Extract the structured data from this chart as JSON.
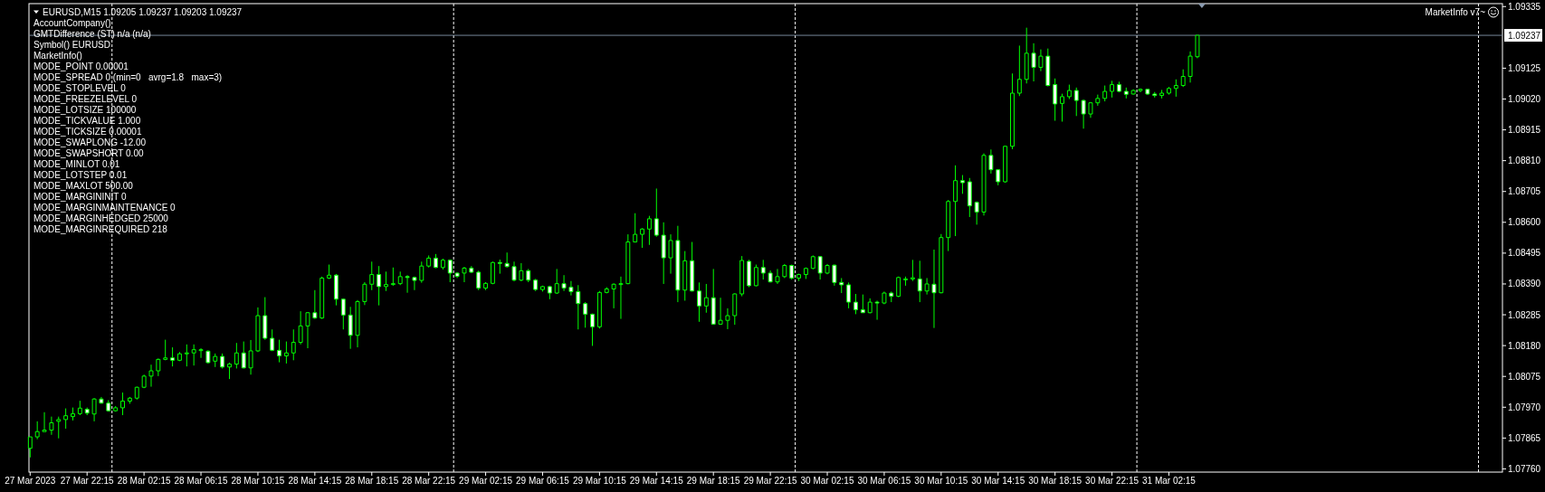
{
  "chart_data": {
    "type": "candlestick",
    "title": "EURUSD,M15 1.09205 1.09237 1.09203 1.09237",
    "subtitle": "MarketInfo v7~",
    "annotations": [
      "AccountCompany()",
      "GMTDifference (ST) n/a (n/a)",
      "Symbol() EURUSD",
      "MarketInfo()",
      "MODE_POINT 0.00001",
      "MODE_SPREAD 0 (min=0   avrg=1.8   max=3)",
      "MODE_STOPLEVEL 0",
      "MODE_FREEZELEVEL 0",
      "MODE_LOTSIZE 100000",
      "MODE_TICKVALUE 1.000",
      "MODE_TICKSIZE 0.00001",
      "MODE_SWAPLONG -12.00",
      "MODE_SWAPSHORT 0.00",
      "MODE_MINLOT 0.01",
      "MODE_LOTSTEP 0.01",
      "MODE_MAXLOT 500.00",
      "MODE_MARGININIT 0",
      "MODE_MARGINMAINTENANCE 0",
      "MODE_MARGINHEDGED 25000",
      "MODE_MARGINREQUIRED 218"
    ],
    "color": "#00ff00",
    "x": [
      "2023-03-27T18:15",
      "2023-03-27T18:45",
      "2023-03-27T19:15",
      "2023-03-27T19:45",
      "2023-03-27T20:15",
      "2023-03-27T20:45",
      "2023-03-27T21:15",
      "2023-03-27T21:45",
      "2023-03-27T22:15",
      "2023-03-27T22:45",
      "2023-03-27T23:15",
      "2023-03-27T23:45",
      "2023-03-28T00:15",
      "2023-03-28T00:45",
      "2023-03-28T01:15",
      "2023-03-28T01:45",
      "2023-03-28T02:15",
      "2023-03-28T02:45",
      "2023-03-28T03:15",
      "2023-03-28T03:45",
      "2023-03-28T04:15",
      "2023-03-28T04:45",
      "2023-03-28T05:15",
      "2023-03-28T05:45",
      "2023-03-28T06:15",
      "2023-03-28T06:45",
      "2023-03-28T07:15",
      "2023-03-28T07:45",
      "2023-03-28T08:15",
      "2023-03-28T08:45",
      "2023-03-28T09:15",
      "2023-03-28T09:45",
      "2023-03-28T10:15",
      "2023-03-28T10:45",
      "2023-03-28T11:15",
      "2023-03-28T11:45",
      "2023-03-28T12:15",
      "2023-03-28T12:45",
      "2023-03-28T13:15",
      "2023-03-28T13:45",
      "2023-03-28T14:15",
      "2023-03-28T14:45",
      "2023-03-28T15:15",
      "2023-03-28T15:45",
      "2023-03-28T16:15",
      "2023-03-28T16:45",
      "2023-03-28T17:15",
      "2023-03-28T17:45",
      "2023-03-28T18:15",
      "2023-03-28T18:45",
      "2023-03-28T19:15",
      "2023-03-28T19:45",
      "2023-03-28T20:15",
      "2023-03-28T20:45",
      "2023-03-28T21:15",
      "2023-03-28T21:45",
      "2023-03-28T22:15",
      "2023-03-28T22:45",
      "2023-03-28T23:15",
      "2023-03-28T23:45",
      "2023-03-29T00:15",
      "2023-03-29T00:45",
      "2023-03-29T01:15",
      "2023-03-29T01:45",
      "2023-03-29T02:15",
      "2023-03-29T02:45",
      "2023-03-29T03:15",
      "2023-03-29T03:45",
      "2023-03-29T04:15",
      "2023-03-29T04:45",
      "2023-03-29T05:15",
      "2023-03-29T05:45",
      "2023-03-29T06:15",
      "2023-03-29T06:45",
      "2023-03-29T07:15",
      "2023-03-29T07:45",
      "2023-03-29T08:15",
      "2023-03-29T08:45",
      "2023-03-29T09:15",
      "2023-03-29T09:45",
      "2023-03-29T10:15",
      "2023-03-29T10:45",
      "2023-03-29T11:15",
      "2023-03-29T11:45",
      "2023-03-29T12:15",
      "2023-03-29T12:45",
      "2023-03-29T13:15",
      "2023-03-29T13:45",
      "2023-03-29T14:15",
      "2023-03-29T14:45",
      "2023-03-29T15:15",
      "2023-03-29T15:45",
      "2023-03-29T16:15",
      "2023-03-29T16:45",
      "2023-03-29T17:15",
      "2023-03-29T17:45",
      "2023-03-29T18:15",
      "2023-03-29T18:45",
      "2023-03-29T19:15",
      "2023-03-29T19:45",
      "2023-03-29T20:15",
      "2023-03-29T20:45",
      "2023-03-29T21:15",
      "2023-03-29T21:45",
      "2023-03-29T22:15",
      "2023-03-29T22:45",
      "2023-03-29T23:15",
      "2023-03-29T23:45",
      "2023-03-30T00:15",
      "2023-03-30T00:45",
      "2023-03-30T01:15",
      "2023-03-30T01:45",
      "2023-03-30T02:15",
      "2023-03-30T02:45",
      "2023-03-30T03:15",
      "2023-03-30T03:45",
      "2023-03-30T04:15",
      "2023-03-30T04:45",
      "2023-03-30T05:15",
      "2023-03-30T05:45",
      "2023-03-30T06:15",
      "2023-03-30T06:45",
      "2023-03-30T07:15",
      "2023-03-30T07:45",
      "2023-03-30T08:15",
      "2023-03-30T08:45",
      "2023-03-30T09:15",
      "2023-03-30T09:45",
      "2023-03-30T10:15",
      "2023-03-30T10:45",
      "2023-03-30T11:15",
      "2023-03-30T11:45",
      "2023-03-30T12:15",
      "2023-03-30T12:45",
      "2023-03-30T13:15",
      "2023-03-30T13:45",
      "2023-03-30T14:15",
      "2023-03-30T14:45",
      "2023-03-30T15:15",
      "2023-03-30T15:45",
      "2023-03-30T16:15",
      "2023-03-30T16:45",
      "2023-03-30T17:15",
      "2023-03-30T17:45",
      "2023-03-30T18:15",
      "2023-03-30T18:45",
      "2023-03-30T19:15",
      "2023-03-30T19:45",
      "2023-03-30T20:15",
      "2023-03-30T20:45",
      "2023-03-30T21:15",
      "2023-03-30T21:45",
      "2023-03-30T22:15",
      "2023-03-30T22:45",
      "2023-03-30T23:15",
      "2023-03-30T23:45",
      "2023-03-31T00:15",
      "2023-03-31T00:45",
      "2023-03-31T01:15",
      "2023-03-31T01:45",
      "2023-03-31T02:15",
      "2023-03-31T02:45",
      "2023-03-31T03:15",
      "2023-03-31T03:45",
      "2023-03-31T04:15"
    ],
    "ohlc": [
      [
        1.0783,
        1.07869,
        1.07799,
        1.07869
      ],
      [
        1.07869,
        1.07922,
        1.07861,
        1.07887
      ],
      [
        1.07887,
        1.07953,
        1.07887,
        1.07892
      ],
      [
        1.07892,
        1.07938,
        1.07876,
        1.07917
      ],
      [
        1.07922,
        1.07938,
        1.07864,
        1.07928
      ],
      [
        1.07928,
        1.07966,
        1.07897,
        1.07941
      ],
      [
        1.07938,
        1.07969,
        1.07925,
        1.07948
      ],
      [
        1.07948,
        1.07992,
        1.07943,
        1.07967
      ],
      [
        1.07963,
        1.07969,
        1.07943,
        1.0795
      ],
      [
        1.07947,
        1.08001,
        1.07922,
        1.07998
      ],
      [
        1.07998,
        1.08005,
        1.07982,
        1.07984
      ],
      [
        1.07984,
        1.07994,
        1.07955,
        1.07958
      ],
      [
        1.07958,
        1.07974,
        1.07955,
        1.07968
      ],
      [
        1.07968,
        1.0802,
        1.07943,
        1.07991
      ],
      [
        1.07991,
        1.08005,
        1.07982,
        1.08001
      ],
      [
        1.08001,
        1.0804,
        1.07996,
        1.08038
      ],
      [
        1.08038,
        1.08081,
        1.08035,
        1.08076
      ],
      [
        1.08076,
        1.08115,
        1.0804,
        1.08094
      ],
      [
        1.08094,
        1.08136,
        1.08076,
        1.08133
      ],
      [
        1.08133,
        1.082,
        1.0813,
        1.08138
      ],
      [
        1.08138,
        1.08174,
        1.08109,
        1.0813
      ],
      [
        1.0813,
        1.08158,
        1.08127,
        1.08152
      ],
      [
        1.08152,
        1.08184,
        1.08109,
        1.08155
      ],
      [
        1.08155,
        1.08184,
        1.08112,
        1.08166
      ],
      [
        1.08166,
        1.08171,
        1.08138,
        1.08166
      ],
      [
        1.08161,
        1.08164,
        1.08119,
        1.08122
      ],
      [
        1.08127,
        1.08153,
        1.08107,
        1.08143
      ],
      [
        1.08143,
        1.08153,
        1.08102,
        1.08107
      ],
      [
        1.08107,
        1.08122,
        1.08066,
        1.08117
      ],
      [
        1.08117,
        1.08189,
        1.08102,
        1.08155
      ],
      [
        1.08155,
        1.08194,
        1.08102,
        1.08104
      ],
      [
        1.08104,
        1.08199,
        1.08081,
        1.08162
      ],
      [
        1.08162,
        1.0831,
        1.08158,
        1.08282
      ],
      [
        1.08282,
        1.08345,
        1.082,
        1.08205
      ],
      [
        1.08205,
        1.08235,
        1.08161,
        1.08164
      ],
      [
        1.08164,
        1.082,
        1.08123,
        1.08145
      ],
      [
        1.08145,
        1.08194,
        1.08119,
        1.08155
      ],
      [
        1.08155,
        1.08235,
        1.0813,
        1.08191
      ],
      [
        1.08191,
        1.08297,
        1.08184,
        1.08247
      ],
      [
        1.08247,
        1.08294,
        1.08171,
        1.08292
      ],
      [
        1.08292,
        1.08369,
        1.08271,
        1.08274
      ],
      [
        1.08274,
        1.08415,
        1.08271,
        1.0841
      ],
      [
        1.0841,
        1.08456,
        1.08407,
        1.0842
      ],
      [
        1.0842,
        1.08424,
        1.08317,
        1.08338
      ],
      [
        1.08338,
        1.0834,
        1.08235,
        1.08284
      ],
      [
        1.08284,
        1.08312,
        1.08169,
        1.08215
      ],
      [
        1.08215,
        1.08335,
        1.08174,
        1.0833
      ],
      [
        1.0833,
        1.08396,
        1.08318,
        1.08389
      ],
      [
        1.08389,
        1.08466,
        1.08369,
        1.08422
      ],
      [
        1.08422,
        1.08451,
        1.08317,
        1.08381
      ],
      [
        1.08381,
        1.08432,
        1.08366,
        1.08388
      ],
      [
        1.08388,
        1.08446,
        1.08384,
        1.08391
      ],
      [
        1.08391,
        1.08432,
        1.08386,
        1.08415
      ],
      [
        1.08415,
        1.0842,
        1.0836,
        1.08412
      ],
      [
        1.08412,
        1.08415,
        1.08369,
        1.08402
      ],
      [
        1.08402,
        1.08466,
        1.08394,
        1.08451
      ],
      [
        1.08451,
        1.08487,
        1.08446,
        1.08478
      ],
      [
        1.08478,
        1.08492,
        1.08444,
        1.08446
      ],
      [
        1.08446,
        1.08476,
        1.08439,
        1.08471
      ],
      [
        1.08471,
        1.08473,
        1.08396,
        1.08427
      ],
      [
        1.08427,
        1.08429,
        1.0841,
        1.08416
      ],
      [
        1.08427,
        1.08448,
        1.08396,
        1.08444
      ],
      [
        1.08444,
        1.08451,
        1.08427,
        1.0843
      ],
      [
        1.0843,
        1.08435,
        1.08369,
        1.08376
      ],
      [
        1.08376,
        1.08396,
        1.08369,
        1.08392
      ],
      [
        1.08392,
        1.08466,
        1.08389,
        1.08463
      ],
      [
        1.08463,
        1.08473,
        1.08425,
        1.0846
      ],
      [
        1.0846,
        1.08497,
        1.08446,
        1.08449
      ],
      [
        1.08449,
        1.08466,
        1.08399,
        1.08403
      ],
      [
        1.08403,
        1.08461,
        1.08399,
        1.08435
      ],
      [
        1.08435,
        1.08441,
        1.08396,
        1.08403
      ],
      [
        1.08403,
        1.08407,
        1.08366,
        1.08371
      ],
      [
        1.08371,
        1.08384,
        1.08364,
        1.08381
      ],
      [
        1.08381,
        1.08384,
        1.08338,
        1.08359
      ],
      [
        1.08359,
        1.08441,
        1.08356,
        1.08391
      ],
      [
        1.08391,
        1.0842,
        1.08366,
        1.08376
      ],
      [
        1.08379,
        1.084,
        1.08351,
        1.08364
      ],
      [
        1.08364,
        1.08386,
        1.08235,
        1.08323
      ],
      [
        1.08323,
        1.08328,
        1.08241,
        1.08287
      ],
      [
        1.08287,
        1.08289,
        1.08179,
        1.08244
      ],
      [
        1.08244,
        1.08366,
        1.08238,
        1.08361
      ],
      [
        1.08361,
        1.08379,
        1.08358,
        1.08373
      ],
      [
        1.08373,
        1.08392,
        1.08307,
        1.08389
      ],
      [
        1.08389,
        1.08415,
        1.08271,
        1.08391
      ],
      [
        1.08391,
        1.08559,
        1.08389,
        1.08533
      ],
      [
        1.08533,
        1.08631,
        1.08533,
        1.08559
      ],
      [
        1.08559,
        1.0858,
        1.08513,
        1.08577
      ],
      [
        1.08577,
        1.08622,
        1.08523,
        1.08612
      ],
      [
        1.08612,
        1.08715,
        1.08551,
        1.08556
      ],
      [
        1.08556,
        1.086,
        1.0839,
        1.08479
      ],
      [
        1.08479,
        1.08559,
        1.08425,
        1.08538
      ],
      [
        1.08538,
        1.08588,
        1.08328,
        1.08369
      ],
      [
        1.08369,
        1.08502,
        1.08333,
        1.08469
      ],
      [
        1.08469,
        1.08533,
        1.08364,
        1.08366
      ],
      [
        1.08366,
        1.08395,
        1.08261,
        1.08315
      ],
      [
        1.08315,
        1.0839,
        1.08292,
        1.08343
      ],
      [
        1.08343,
        1.08441,
        1.08251,
        1.08253
      ],
      [
        1.08253,
        1.08343,
        1.08251,
        1.08266
      ],
      [
        1.08266,
        1.08307,
        1.08236,
        1.08282
      ],
      [
        1.08282,
        1.08358,
        1.08251,
        1.08356
      ],
      [
        1.08356,
        1.08485,
        1.08348,
        1.0847
      ],
      [
        1.08467,
        1.08472,
        1.08379,
        1.08384
      ],
      [
        1.08384,
        1.08456,
        1.08382,
        1.08446
      ],
      [
        1.08446,
        1.08472,
        1.08405,
        1.08427
      ],
      [
        1.08427,
        1.08436,
        1.08395,
        1.08397
      ],
      [
        1.08397,
        1.08441,
        1.0839,
        1.08415
      ],
      [
        1.08415,
        1.08458,
        1.0841,
        1.08453
      ],
      [
        1.08453,
        1.08456,
        1.08405,
        1.0841
      ],
      [
        1.0841,
        1.08425,
        1.084,
        1.08422
      ],
      [
        1.08422,
        1.08446,
        1.08407,
        1.08443
      ],
      [
        1.08443,
        1.08487,
        1.0844,
        1.08483
      ],
      [
        1.08483,
        1.08485,
        1.08405,
        1.08427
      ],
      [
        1.08427,
        1.08458,
        1.08423,
        1.08453
      ],
      [
        1.08454,
        1.08456,
        1.08384,
        1.08395
      ],
      [
        1.08395,
        1.0841,
        1.08359,
        1.08387
      ],
      [
        1.08387,
        1.08395,
        1.08307,
        1.08328
      ],
      [
        1.08328,
        1.08356,
        1.08287,
        1.08302
      ],
      [
        1.08302,
        1.08354,
        1.08292,
        1.08292
      ],
      [
        1.08292,
        1.08341,
        1.0829,
        1.08328
      ],
      [
        1.08328,
        1.08333,
        1.08268,
        1.08325
      ],
      [
        1.08325,
        1.08364,
        1.08321,
        1.08359
      ],
      [
        1.08359,
        1.08364,
        1.08328,
        1.08348
      ],
      [
        1.08348,
        1.08415,
        1.08345,
        1.08412
      ],
      [
        1.08407,
        1.08415,
        1.08384,
        1.08407
      ],
      [
        1.08407,
        1.08472,
        1.084,
        1.08411
      ],
      [
        1.08407,
        1.08469,
        1.08328,
        1.08366
      ],
      [
        1.08366,
        1.0841,
        1.08354,
        1.0839
      ],
      [
        1.08389,
        1.08507,
        1.0824,
        1.0836
      ],
      [
        1.0836,
        1.0856,
        1.08358,
        1.08548
      ],
      [
        1.08548,
        1.08676,
        1.08502,
        1.08671
      ],
      [
        1.08671,
        1.08794,
        1.08553,
        1.08742
      ],
      [
        1.08742,
        1.08761,
        1.08697,
        1.08735
      ],
      [
        1.08738,
        1.08751,
        1.08618,
        1.08656
      ],
      [
        1.08668,
        1.08671,
        1.08592,
        1.08635
      ],
      [
        1.08635,
        1.08835,
        1.08623,
        1.08828
      ],
      [
        1.08828,
        1.08848,
        1.08766,
        1.08779
      ],
      [
        1.08779,
        1.08779,
        1.08726,
        1.08738
      ],
      [
        1.08738,
        1.08861,
        1.08735,
        1.08859
      ],
      [
        1.08859,
        1.09107,
        1.08849,
        1.0904
      ],
      [
        1.0904,
        1.09202,
        1.0903,
        1.09087
      ],
      [
        1.09087,
        1.09263,
        1.09073,
        1.09176
      ],
      [
        1.09176,
        1.0921,
        1.0908,
        1.09128
      ],
      [
        1.09128,
        1.09189,
        1.09115,
        1.09166
      ],
      [
        1.09166,
        1.09192,
        1.09063,
        1.09066
      ],
      [
        1.09069,
        1.0909,
        1.08946,
        1.09003
      ],
      [
        1.09005,
        1.09038,
        1.08943,
        1.09028
      ],
      [
        1.09028,
        1.09069,
        1.0902,
        1.09049
      ],
      [
        1.09049,
        1.09059,
        1.08962,
        1.09015
      ],
      [
        1.09015,
        1.09018,
        1.08919,
        1.08969
      ],
      [
        1.08969,
        1.0901,
        1.08956,
        1.09007
      ],
      [
        1.09007,
        1.09035,
        1.08997,
        1.09022
      ],
      [
        1.09022,
        1.09066,
        1.09012,
        1.09046
      ],
      [
        1.09046,
        1.09082,
        1.09025,
        1.09069
      ],
      [
        1.09069,
        1.09079,
        1.09043,
        1.09046
      ],
      [
        1.09046,
        1.09059,
        1.09022,
        1.09036
      ],
      [
        1.09037,
        1.09053,
        1.09035,
        1.09049
      ],
      [
        1.09049,
        1.09056,
        1.09043,
        1.09053
      ],
      [
        1.09053,
        1.09053,
        1.09034,
        1.09037
      ],
      [
        1.09037,
        1.09044,
        1.09025,
        1.09032
      ],
      [
        1.09032,
        1.09051,
        1.09022,
        1.0904
      ],
      [
        1.0904,
        1.09061,
        1.09035,
        1.09056
      ],
      [
        1.09056,
        1.09087,
        1.09028,
        1.09066
      ],
      [
        1.09066,
        1.09121,
        1.09061,
        1.09097
      ],
      [
        1.09097,
        1.09182,
        1.09076,
        1.09166
      ],
      [
        1.09164,
        1.09237,
        1.09159,
        1.09237
      ]
    ],
    "xlim": [
      "2023-03-27T18:10",
      "2023-04-01T01:41"
    ],
    "ylim": [
      1.07749,
      1.09345
    ],
    "xticks": [
      {
        "value": "2023-03-27T18:15",
        "label": "27 Mar 2023"
      },
      {
        "value": "2023-03-27T22:15",
        "label": "27 Mar 22:15"
      },
      {
        "value": "2023-03-28T02:15",
        "label": "28 Mar 02:15"
      },
      {
        "value": "2023-03-28T06:15",
        "label": "28 Mar 06:15"
      },
      {
        "value": "2023-03-28T10:15",
        "label": "28 Mar 10:15"
      },
      {
        "value": "2023-03-28T14:15",
        "label": "28 Mar 14:15"
      },
      {
        "value": "2023-03-28T18:15",
        "label": "28 Mar 18:15"
      },
      {
        "value": "2023-03-28T22:15",
        "label": "28 Mar 22:15"
      },
      {
        "value": "2023-03-29T02:15",
        "label": "29 Mar 02:15"
      },
      {
        "value": "2023-03-29T06:15",
        "label": "29 Mar 06:15"
      },
      {
        "value": "2023-03-29T10:15",
        "label": "29 Mar 10:15"
      },
      {
        "value": "2023-03-29T14:15",
        "label": "29 Mar 14:15"
      },
      {
        "value": "2023-03-29T18:15",
        "label": "29 Mar 18:15"
      },
      {
        "value": "2023-03-29T22:15",
        "label": "29 Mar 22:15"
      },
      {
        "value": "2023-03-30T02:15",
        "label": "30 Mar 02:15"
      },
      {
        "value": "2023-03-30T06:15",
        "label": "30 Mar 06:15"
      },
      {
        "value": "2023-03-30T10:15",
        "label": "30 Mar 10:15"
      },
      {
        "value": "2023-03-30T14:15",
        "label": "30 Mar 14:15"
      },
      {
        "value": "2023-03-30T18:15",
        "label": "30 Mar 18:15"
      },
      {
        "value": "2023-03-30T22:15",
        "label": "30 Mar 22:15"
      },
      {
        "value": "2023-03-31T02:15",
        "label": "31 Mar 02:15"
      }
    ],
    "yticks": [
      1.09335,
      1.09125,
      {
        "value": 1.0902,
        "label": "1.09020"
      },
      1.08915,
      {
        "value": 1.0881,
        "label": "1.08810"
      },
      1.08705,
      {
        "value": 1.086,
        "label": "1.08600"
      },
      1.08495,
      {
        "value": 1.0839,
        "label": "1.08390"
      },
      1.08285,
      {
        "value": 1.0818,
        "label": "1.08180"
      },
      1.08075,
      {
        "value": 1.0797,
        "label": "1.07970"
      },
      1.07865,
      {
        "value": 1.0776,
        "label": "1.07760"
      }
    ],
    "ref_lines": [
      {
        "axis": "x",
        "value": "2023-03-28T00:00",
        "color": "#ffffff",
        "line_style": "dashed"
      },
      {
        "axis": "x",
        "value": "2023-03-29T00:00",
        "color": "#ffffff",
        "line_style": "dashed"
      },
      {
        "axis": "x",
        "value": "2023-03-30T00:00",
        "color": "#ffffff",
        "line_style": "dashed"
      },
      {
        "axis": "x",
        "value": "2023-03-31T00:00",
        "color": "#ffffff",
        "line_style": "dashed"
      },
      {
        "axis": "x",
        "value": "2023-04-01T00:00",
        "color": "#ffffff",
        "line_style": "dashed"
      },
      {
        "axis": "y",
        "value": 1.09237,
        "label": "1.09237",
        "color": "#778899"
      }
    ]
  }
}
